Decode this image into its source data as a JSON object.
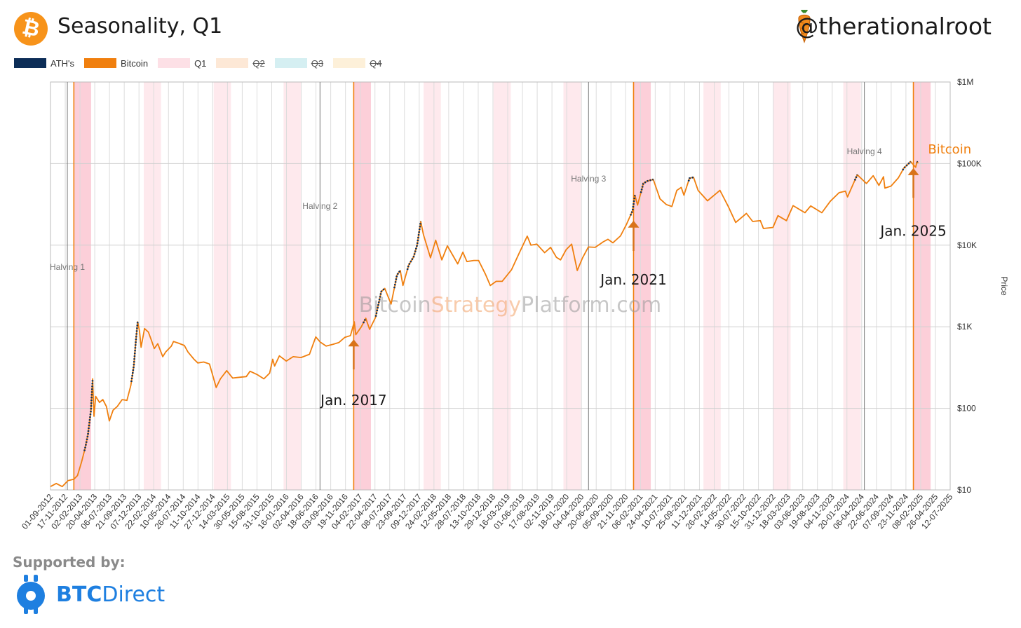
{
  "header": {
    "title": "Seasonality, Q1",
    "handle": "@therationalroot",
    "logo_glyph": "₿",
    "logo_icon": "bitcoin-logo-icon",
    "handle_icon": "carrot-icon"
  },
  "legend": [
    {
      "label": "ATH's",
      "color": "#0c2d57",
      "enabled": true
    },
    {
      "label": "Bitcoin",
      "color": "#f07f0e",
      "enabled": true
    },
    {
      "label": "Q1",
      "color": "#fde0e6",
      "enabled": true
    },
    {
      "label": "Q2",
      "color": "#fde8d6",
      "enabled": false
    },
    {
      "label": "Q3",
      "color": "#d5eff2",
      "enabled": false
    },
    {
      "label": "Q4",
      "color": "#fdf0d9",
      "enabled": false
    }
  ],
  "footer": {
    "supported_by": "Supported by:",
    "brand_bold": "BTC",
    "brand_rest": "Direct",
    "brand_color": "#1e7fe0"
  },
  "chart_data": {
    "type": "line",
    "yscale": "log",
    "ylim": [
      10,
      1000000
    ],
    "xlim": [
      "2012-09-01",
      "2025-07-12"
    ],
    "ylabel": "Price",
    "yticks": [
      {
        "value": 10,
        "label": "$10"
      },
      {
        "value": 100,
        "label": "$100"
      },
      {
        "value": 1000,
        "label": "$1K"
      },
      {
        "value": 10000,
        "label": "$10K"
      },
      {
        "value": 100000,
        "label": "$100K"
      },
      {
        "value": 1000000,
        "label": "$1M"
      }
    ],
    "xtick_labels": [
      "01-09-2012",
      "17-11-2012",
      "02-02-2013",
      "20-04-2013",
      "06-07-2013",
      "21-09-2013",
      "07-12-2013",
      "22-02-2014",
      "10-05-2014",
      "26-07-2014",
      "11-10-2014",
      "27-12-2014",
      "14-03-2015",
      "30-05-2015",
      "15-08-2015",
      "31-10-2015",
      "16-01-2016",
      "02-04-2016",
      "18-06-2016",
      "03-09-2016",
      "19-11-2016",
      "04-02-2017",
      "22-04-2017",
      "08-07-2017",
      "23-09-2017",
      "09-12-2017",
      "24-02-2018",
      "12-05-2018",
      "28-07-2018",
      "13-10-2018",
      "29-12-2018",
      "16-03-2019",
      "01-06-2019",
      "17-08-2019",
      "02-11-2019",
      "18-01-2020",
      "04-04-2020",
      "20-06-2020",
      "05-09-2020",
      "21-11-2020",
      "06-02-2021",
      "24-04-2021",
      "10-07-2021",
      "25-09-2021",
      "11-12-2021",
      "26-02-2022",
      "14-05-2022",
      "30-07-2022",
      "15-10-2022",
      "31-12-2022",
      "18-03-2023",
      "03-06-2023",
      "19-08-2023",
      "04-11-2023",
      "20-01-2024",
      "06-04-2024",
      "22-06-2024",
      "07-09-2024",
      "23-11-2024",
      "08-02-2025",
      "26-04-2025",
      "12-07-2025"
    ],
    "q1_bands": [
      {
        "start": "2013-01-01",
        "end": "2013-04-01",
        "emphasis": true
      },
      {
        "start": "2014-01-01",
        "end": "2014-04-01",
        "emphasis": false
      },
      {
        "start": "2015-01-01",
        "end": "2015-04-01",
        "emphasis": false
      },
      {
        "start": "2016-01-01",
        "end": "2016-04-01",
        "emphasis": false
      },
      {
        "start": "2017-01-01",
        "end": "2017-04-01",
        "emphasis": true
      },
      {
        "start": "2018-01-01",
        "end": "2018-04-01",
        "emphasis": false
      },
      {
        "start": "2019-01-01",
        "end": "2019-04-01",
        "emphasis": false
      },
      {
        "start": "2020-01-01",
        "end": "2020-04-01",
        "emphasis": false
      },
      {
        "start": "2021-01-01",
        "end": "2021-04-01",
        "emphasis": true
      },
      {
        "start": "2022-01-01",
        "end": "2022-04-01",
        "emphasis": false
      },
      {
        "start": "2023-01-01",
        "end": "2023-04-01",
        "emphasis": false
      },
      {
        "start": "2024-01-01",
        "end": "2024-04-01",
        "emphasis": false
      },
      {
        "start": "2025-01-01",
        "end": "2025-04-01",
        "emphasis": true
      }
    ],
    "halvings": [
      {
        "label": "Halving 1",
        "date": "2012-11-28",
        "label_price": 5000
      },
      {
        "label": "Halving 2",
        "date": "2016-07-09",
        "label_price": 28000
      },
      {
        "label": "Halving 3",
        "date": "2020-05-11",
        "label_price": 60000
      },
      {
        "label": "Halving 4",
        "date": "2024-04-20",
        "label_price": 130000
      }
    ],
    "january_markers": [
      {
        "date": "2013-01-01",
        "color": "#f07f0e"
      },
      {
        "date": "2017-01-01",
        "color": "#f07f0e"
      },
      {
        "date": "2021-01-01",
        "color": "#f07f0e"
      },
      {
        "date": "2025-01-01",
        "color": "#f07f0e"
      }
    ],
    "annotations": [
      {
        "text": "Jan. 2017",
        "date": "2017-01-01",
        "label_price": 110,
        "arrow_from_price": 300,
        "arrow_to_price": 700
      },
      {
        "text": "Jan. 2021",
        "date": "2021-01-01",
        "label_price": 3300,
        "arrow_from_price": 8500,
        "arrow_to_price": 20000
      },
      {
        "text": "Jan. 2025",
        "date": "2025-01-01",
        "label_price": 13000,
        "arrow_from_price": 38000,
        "arrow_to_price": 88000
      }
    ],
    "series_label": {
      "text": "Bitcoin",
      "color": "#f07f0e"
    },
    "watermark": {
      "part1": "Bitcoin",
      "part2": "Strategy",
      "part3": "Platform.com"
    },
    "series": [
      {
        "name": "Bitcoin",
        "color": "#f07f0e",
        "points": [
          [
            "2012-09-01",
            11
          ],
          [
            "2012-10-01",
            12
          ],
          [
            "2012-11-01",
            11
          ],
          [
            "2012-12-01",
            13
          ],
          [
            "2013-01-01",
            13.5
          ],
          [
            "2013-01-20",
            15
          ],
          [
            "2013-02-10",
            22
          ],
          [
            "2013-02-28",
            32
          ],
          [
            "2013-03-15",
            47
          ],
          [
            "2013-03-31",
            93
          ],
          [
            "2013-04-09",
            230
          ],
          [
            "2013-04-16",
            80
          ],
          [
            "2013-04-25",
            140
          ],
          [
            "2013-05-15",
            118
          ],
          [
            "2013-06-01",
            128
          ],
          [
            "2013-06-20",
            105
          ],
          [
            "2013-07-05",
            70
          ],
          [
            "2013-07-25",
            95
          ],
          [
            "2013-08-15",
            105
          ],
          [
            "2013-09-10",
            128
          ],
          [
            "2013-10-05",
            125
          ],
          [
            "2013-10-25",
            190
          ],
          [
            "2013-11-10",
            330
          ],
          [
            "2013-11-20",
            650
          ],
          [
            "2013-11-30",
            1150
          ],
          [
            "2013-12-10",
            880
          ],
          [
            "2013-12-18",
            560
          ],
          [
            "2014-01-05",
            950
          ],
          [
            "2014-01-25",
            860
          ],
          [
            "2014-02-10",
            680
          ],
          [
            "2014-02-25",
            540
          ],
          [
            "2014-03-15",
            620
          ],
          [
            "2014-04-10",
            430
          ],
          [
            "2014-04-25",
            490
          ],
          [
            "2014-05-25",
            580
          ],
          [
            "2014-06-05",
            660
          ],
          [
            "2014-07-01",
            630
          ],
          [
            "2014-08-01",
            590
          ],
          [
            "2014-08-20",
            490
          ],
          [
            "2014-09-20",
            400
          ],
          [
            "2014-10-10",
            360
          ],
          [
            "2014-11-10",
            370
          ],
          [
            "2014-12-10",
            350
          ],
          [
            "2015-01-14",
            180
          ],
          [
            "2015-02-05",
            230
          ],
          [
            "2015-03-10",
            290
          ],
          [
            "2015-04-10",
            235
          ],
          [
            "2015-05-15",
            240
          ],
          [
            "2015-06-20",
            245
          ],
          [
            "2015-07-10",
            285
          ],
          [
            "2015-08-15",
            260
          ],
          [
            "2015-09-20",
            230
          ],
          [
            "2015-10-20",
            270
          ],
          [
            "2015-11-05",
            400
          ],
          [
            "2015-11-15",
            330
          ],
          [
            "2015-12-10",
            440
          ],
          [
            "2016-01-15",
            380
          ],
          [
            "2016-02-20",
            430
          ],
          [
            "2016-04-01",
            420
          ],
          [
            "2016-05-15",
            460
          ],
          [
            "2016-06-17",
            750
          ],
          [
            "2016-07-10",
            650
          ],
          [
            "2016-08-10",
            580
          ],
          [
            "2016-09-15",
            610
          ],
          [
            "2016-10-15",
            640
          ],
          [
            "2016-11-15",
            740
          ],
          [
            "2016-12-15",
            780
          ],
          [
            "2017-01-04",
            1150
          ],
          [
            "2017-01-12",
            800
          ],
          [
            "2017-02-10",
            1000
          ],
          [
            "2017-03-05",
            1270
          ],
          [
            "2017-03-25",
            930
          ],
          [
            "2017-04-25",
            1300
          ],
          [
            "2017-05-25",
            2700
          ],
          [
            "2017-06-12",
            2950
          ],
          [
            "2017-07-15",
            1900
          ],
          [
            "2017-08-15",
            4300
          ],
          [
            "2017-09-01",
            4900
          ],
          [
            "2017-09-15",
            3200
          ],
          [
            "2017-10-15",
            5700
          ],
          [
            "2017-11-10",
            7200
          ],
          [
            "2017-11-28",
            10000
          ],
          [
            "2017-12-17",
            19500
          ],
          [
            "2017-12-31",
            13500
          ],
          [
            "2018-02-06",
            7000
          ],
          [
            "2018-03-05",
            11500
          ],
          [
            "2018-04-06",
            6600
          ],
          [
            "2018-05-05",
            9800
          ],
          [
            "2018-06-28",
            5900
          ],
          [
            "2018-07-25",
            8200
          ],
          [
            "2018-08-15",
            6300
          ],
          [
            "2018-09-20",
            6500
          ],
          [
            "2018-10-15",
            6500
          ],
          [
            "2018-11-20",
            4400
          ],
          [
            "2018-12-15",
            3200
          ],
          [
            "2019-01-15",
            3600
          ],
          [
            "2019-02-15",
            3600
          ],
          [
            "2019-04-05",
            5000
          ],
          [
            "2019-05-15",
            8000
          ],
          [
            "2019-06-26",
            12900
          ],
          [
            "2019-07-15",
            10000
          ],
          [
            "2019-08-15",
            10300
          ],
          [
            "2019-09-25",
            8100
          ],
          [
            "2019-10-26",
            9400
          ],
          [
            "2019-11-25",
            7100
          ],
          [
            "2019-12-17",
            6600
          ],
          [
            "2020-01-15",
            8800
          ],
          [
            "2020-02-13",
            10300
          ],
          [
            "2020-03-13",
            4900
          ],
          [
            "2020-04-10",
            7000
          ],
          [
            "2020-05-10",
            9500
          ],
          [
            "2020-06-15",
            9400
          ],
          [
            "2020-07-27",
            11000
          ],
          [
            "2020-08-20",
            11800
          ],
          [
            "2020-09-15",
            10700
          ],
          [
            "2020-10-25",
            13000
          ],
          [
            "2020-11-25",
            18000
          ],
          [
            "2020-12-27",
            26500
          ],
          [
            "2021-01-08",
            41000
          ],
          [
            "2021-01-22",
            31000
          ],
          [
            "2021-02-21",
            57000
          ],
          [
            "2021-03-13",
            61000
          ],
          [
            "2021-04-14",
            64000
          ],
          [
            "2021-05-19",
            37000
          ],
          [
            "2021-06-21",
            31500
          ],
          [
            "2021-07-20",
            29800
          ],
          [
            "2021-08-15",
            47000
          ],
          [
            "2021-09-07",
            51000
          ],
          [
            "2021-09-21",
            41000
          ],
          [
            "2021-10-20",
            66000
          ],
          [
            "2021-11-10",
            68000
          ],
          [
            "2021-12-04",
            47000
          ],
          [
            "2022-01-22",
            35000
          ],
          [
            "2022-03-28",
            47000
          ],
          [
            "2022-05-10",
            30000
          ],
          [
            "2022-06-18",
            19000
          ],
          [
            "2022-08-13",
            24500
          ],
          [
            "2022-09-15",
            19500
          ],
          [
            "2022-10-25",
            20000
          ],
          [
            "2022-11-10",
            16000
          ],
          [
            "2022-12-30",
            16500
          ],
          [
            "2023-01-25",
            23000
          ],
          [
            "2023-03-10",
            20000
          ],
          [
            "2023-04-14",
            30500
          ],
          [
            "2023-06-15",
            25000
          ],
          [
            "2023-07-15",
            30300
          ],
          [
            "2023-09-11",
            25000
          ],
          [
            "2023-10-25",
            34500
          ],
          [
            "2023-12-10",
            44000
          ],
          [
            "2024-01-12",
            46000
          ],
          [
            "2024-01-23",
            39000
          ],
          [
            "2024-03-14",
            73000
          ],
          [
            "2024-05-01",
            57000
          ],
          [
            "2024-06-05",
            71000
          ],
          [
            "2024-07-05",
            54000
          ],
          [
            "2024-07-29",
            69000
          ],
          [
            "2024-08-05",
            50000
          ],
          [
            "2024-09-06",
            53000
          ],
          [
            "2024-10-15",
            67000
          ],
          [
            "2024-11-12",
            88000
          ],
          [
            "2024-12-05",
            99000
          ],
          [
            "2024-12-17",
            106000
          ],
          [
            "2025-01-13",
            90000
          ],
          [
            "2025-01-20",
            106000
          ],
          [
            "2025-01-26",
            101000
          ]
        ]
      }
    ],
    "ath_ranges": [
      [
        "2013-02-25",
        "2013-04-09"
      ],
      [
        "2013-10-28",
        "2013-11-30"
      ],
      [
        "2017-02-20",
        "2017-03-05"
      ],
      [
        "2017-04-26",
        "2017-06-12"
      ],
      [
        "2017-08-01",
        "2017-09-01"
      ],
      [
        "2017-10-08",
        "2017-12-17"
      ],
      [
        "2020-12-16",
        "2021-01-08"
      ],
      [
        "2021-02-08",
        "2021-04-14"
      ],
      [
        "2021-10-15",
        "2021-11-10"
      ],
      [
        "2024-03-01",
        "2024-03-14"
      ],
      [
        "2024-11-06",
        "2024-12-17"
      ],
      [
        "2025-01-20",
        "2025-01-22"
      ]
    ]
  }
}
